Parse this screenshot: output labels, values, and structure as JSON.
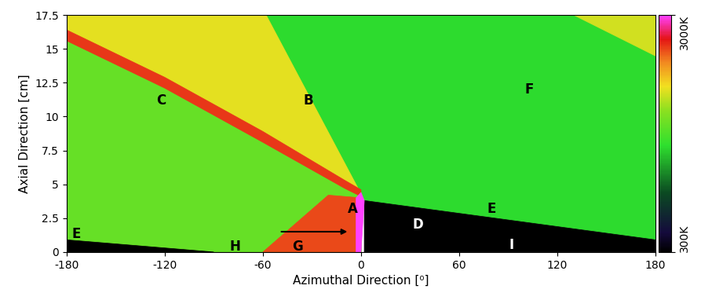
{
  "chart_data": {
    "type": "heatmap",
    "x_label": "Azimuthal Direction [⁰]",
    "y_label": "Axial Direction [cm]",
    "xlim": [
      -180,
      180
    ],
    "ylim": [
      0,
      17.5
    ],
    "xticks": [
      -180,
      -120,
      -60,
      0,
      60,
      120,
      180
    ],
    "yticks": [
      0,
      2.5,
      5,
      7.5,
      10,
      12.5,
      15,
      17.5
    ],
    "colorbar_range": [
      300,
      3000
    ],
    "colorbar_ticks": [
      {
        "value": 300,
        "label": "300K"
      },
      {
        "value": 3000,
        "label": "3000K"
      }
    ],
    "regions": [
      {
        "x": [
          -180,
          0,
          0,
          -180
        ],
        "y": [
          0,
          0,
          17.5,
          17.5
        ],
        "value": 1750
      },
      {
        "x": [
          2,
          180,
          180,
          -58,
          0
        ],
        "y": [
          3.8,
          0.9,
          17.5,
          17.5,
          4.3
        ],
        "value": 1500
      },
      {
        "x": [
          0,
          -58,
          -180,
          -180,
          -120,
          -60,
          -10
        ],
        "y": [
          4.3,
          17.5,
          17.5,
          16,
          12.5,
          8.5,
          5
        ],
        "value": 2150
      },
      {
        "x": [
          0,
          -10,
          -60,
          -120,
          -180,
          -180,
          -120,
          -60,
          -10,
          0
        ],
        "y": [
          4.6,
          5.3,
          8.9,
          12.9,
          16.4,
          15.6,
          12.1,
          8.1,
          4.7,
          4.1
        ],
        "value": 2650
      },
      {
        "x": [
          -60,
          -2,
          0,
          -20
        ],
        "y": [
          0,
          0,
          4,
          4.2
        ],
        "value": 2600
      },
      {
        "x": [
          2,
          180,
          180,
          2
        ],
        "y": [
          0,
          0,
          0.9,
          3.8
        ],
        "value": 300
      },
      {
        "x": [
          -180,
          -90,
          -180
        ],
        "y": [
          0,
          0,
          0.9
        ],
        "value": 300
      },
      {
        "x": [
          -3,
          0,
          2,
          0,
          -3
        ],
        "y": [
          0,
          0,
          3.8,
          4.4,
          4
        ],
        "value": 3000
      },
      {
        "x": [
          130,
          180,
          180
        ],
        "y": [
          17.5,
          17.5,
          14.5
        ],
        "value": 2100
      }
    ],
    "annotations": [
      {
        "text": "A",
        "x": -5,
        "y": 3.2,
        "color": "black"
      },
      {
        "text": "B",
        "x": -32,
        "y": 11.2,
        "color": "black"
      },
      {
        "text": "C",
        "x": -122,
        "y": 11.2,
        "color": "black"
      },
      {
        "text": "D",
        "x": 35,
        "y": 2,
        "color": "white"
      },
      {
        "text": "E",
        "x": -174,
        "y": 1.3,
        "color": "black"
      },
      {
        "text": "E",
        "x": 80,
        "y": 3.2,
        "color": "black"
      },
      {
        "text": "F",
        "x": 103,
        "y": 12,
        "color": "black"
      },
      {
        "text": "G",
        "x": -39,
        "y": 0.4,
        "color": "black"
      },
      {
        "text": "H",
        "x": -77,
        "y": 0.4,
        "color": "black"
      },
      {
        "text": "I",
        "x": 92,
        "y": 0.5,
        "color": "white"
      }
    ],
    "arrows": [
      {
        "x": [
          -50,
          -7
        ],
        "y": [
          1.5,
          1.5
        ]
      }
    ]
  }
}
